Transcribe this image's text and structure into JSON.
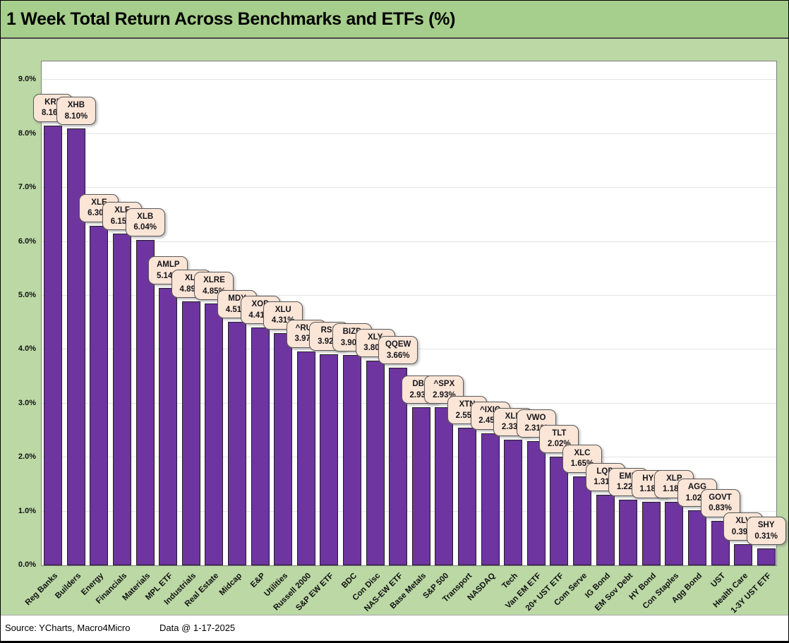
{
  "header": {
    "title": "1 Week Total Return Across Benchmarks and ETFs (%)"
  },
  "footer": {
    "source": "Source: YCharts, Macro4Micro",
    "date": "Data @ 1-17-2025"
  },
  "colors": {
    "bar_fill": "#6E34A0",
    "bar_border": "#1F1F1F",
    "callout_fill": "#FBE5D6",
    "callout_border": "#595959",
    "callout_text": "#15151C",
    "background_green": "#BBD8A5",
    "title_bar_green": "#A6CE8C",
    "plot_background": "#FFFFFF",
    "gridline": "#E3E3E3"
  },
  "chart_data": {
    "type": "bar",
    "title": "1 Week Total Return Across Benchmarks and ETFs (%)",
    "xlabel": "",
    "ylabel": "",
    "ylim": [
      0,
      9.4
    ],
    "ytick_step": 1.0,
    "grid": true,
    "legend": "none",
    "value_suffix": "%",
    "ytick_labels": [
      "0.0%",
      "1.0%",
      "2.0%",
      "3.0%",
      "4.0%",
      "5.0%",
      "6.0%",
      "7.0%",
      "8.0%",
      "9.0%"
    ],
    "points": [
      {
        "category": "Reg Banks",
        "ticker": "KRE",
        "value": 8.16
      },
      {
        "category": "Builders",
        "ticker": "XHB",
        "value": 8.1
      },
      {
        "category": "Energy",
        "ticker": "XLE",
        "value": 6.3
      },
      {
        "category": "Financials",
        "ticker": "XLF",
        "value": 6.15
      },
      {
        "category": "Materials",
        "ticker": "XLB",
        "value": 6.04
      },
      {
        "category": "MPL ETF",
        "ticker": "AMLP",
        "value": 5.14
      },
      {
        "category": "Industrials",
        "ticker": "XLI",
        "value": 4.89
      },
      {
        "category": "Real Estate",
        "ticker": "XLRE",
        "value": 4.85
      },
      {
        "category": "Midcap",
        "ticker": "MDY",
        "value": 4.51
      },
      {
        "category": "E&P",
        "ticker": "XOP",
        "value": 4.41
      },
      {
        "category": "Utilities",
        "ticker": "XLU",
        "value": 4.31
      },
      {
        "category": "Russell 2000",
        "ticker": "^RUT",
        "value": 3.97
      },
      {
        "category": "S&P EW ETF",
        "ticker": "RSP",
        "value": 3.92
      },
      {
        "category": "BDC",
        "ticker": "BIZD",
        "value": 3.9
      },
      {
        "category": "Con Disc",
        "ticker": "XLY",
        "value": 3.8
      },
      {
        "category": "NAS-EW ETF",
        "ticker": "QQEW",
        "value": 3.66
      },
      {
        "category": "Base Metals",
        "ticker": "DBB",
        "value": 2.93
      },
      {
        "category": "S&P 500",
        "ticker": "^SPX",
        "value": 2.93
      },
      {
        "category": "Transport",
        "ticker": "XTN",
        "value": 2.55
      },
      {
        "category": "NASDAQ",
        "ticker": "^IXIC",
        "value": 2.45
      },
      {
        "category": "Tech",
        "ticker": "XLK",
        "value": 2.33
      },
      {
        "category": "Van EM ETF",
        "ticker": "VWO",
        "value": 2.31
      },
      {
        "category": "20+ UST ETF",
        "ticker": "TLT",
        "value": 2.02
      },
      {
        "category": "Com Serve",
        "ticker": "XLC",
        "value": 1.65
      },
      {
        "category": "IG Bond",
        "ticker": "LQD",
        "value": 1.31
      },
      {
        "category": "EM Sov Debt",
        "ticker": "EMB",
        "value": 1.22
      },
      {
        "category": "HY Bond",
        "ticker": "HYG",
        "value": 1.18
      },
      {
        "category": "Con Staples",
        "ticker": "XLP",
        "value": 1.18
      },
      {
        "category": "Agg Bond",
        "ticker": "AGG",
        "value": 1.02
      },
      {
        "category": "UST",
        "ticker": "GOVT",
        "value": 0.83
      },
      {
        "category": "Health Care",
        "ticker": "XLV",
        "value": 0.39
      },
      {
        "category": "1-3Y UST ETF",
        "ticker": "SHY",
        "value": 0.31
      }
    ]
  }
}
